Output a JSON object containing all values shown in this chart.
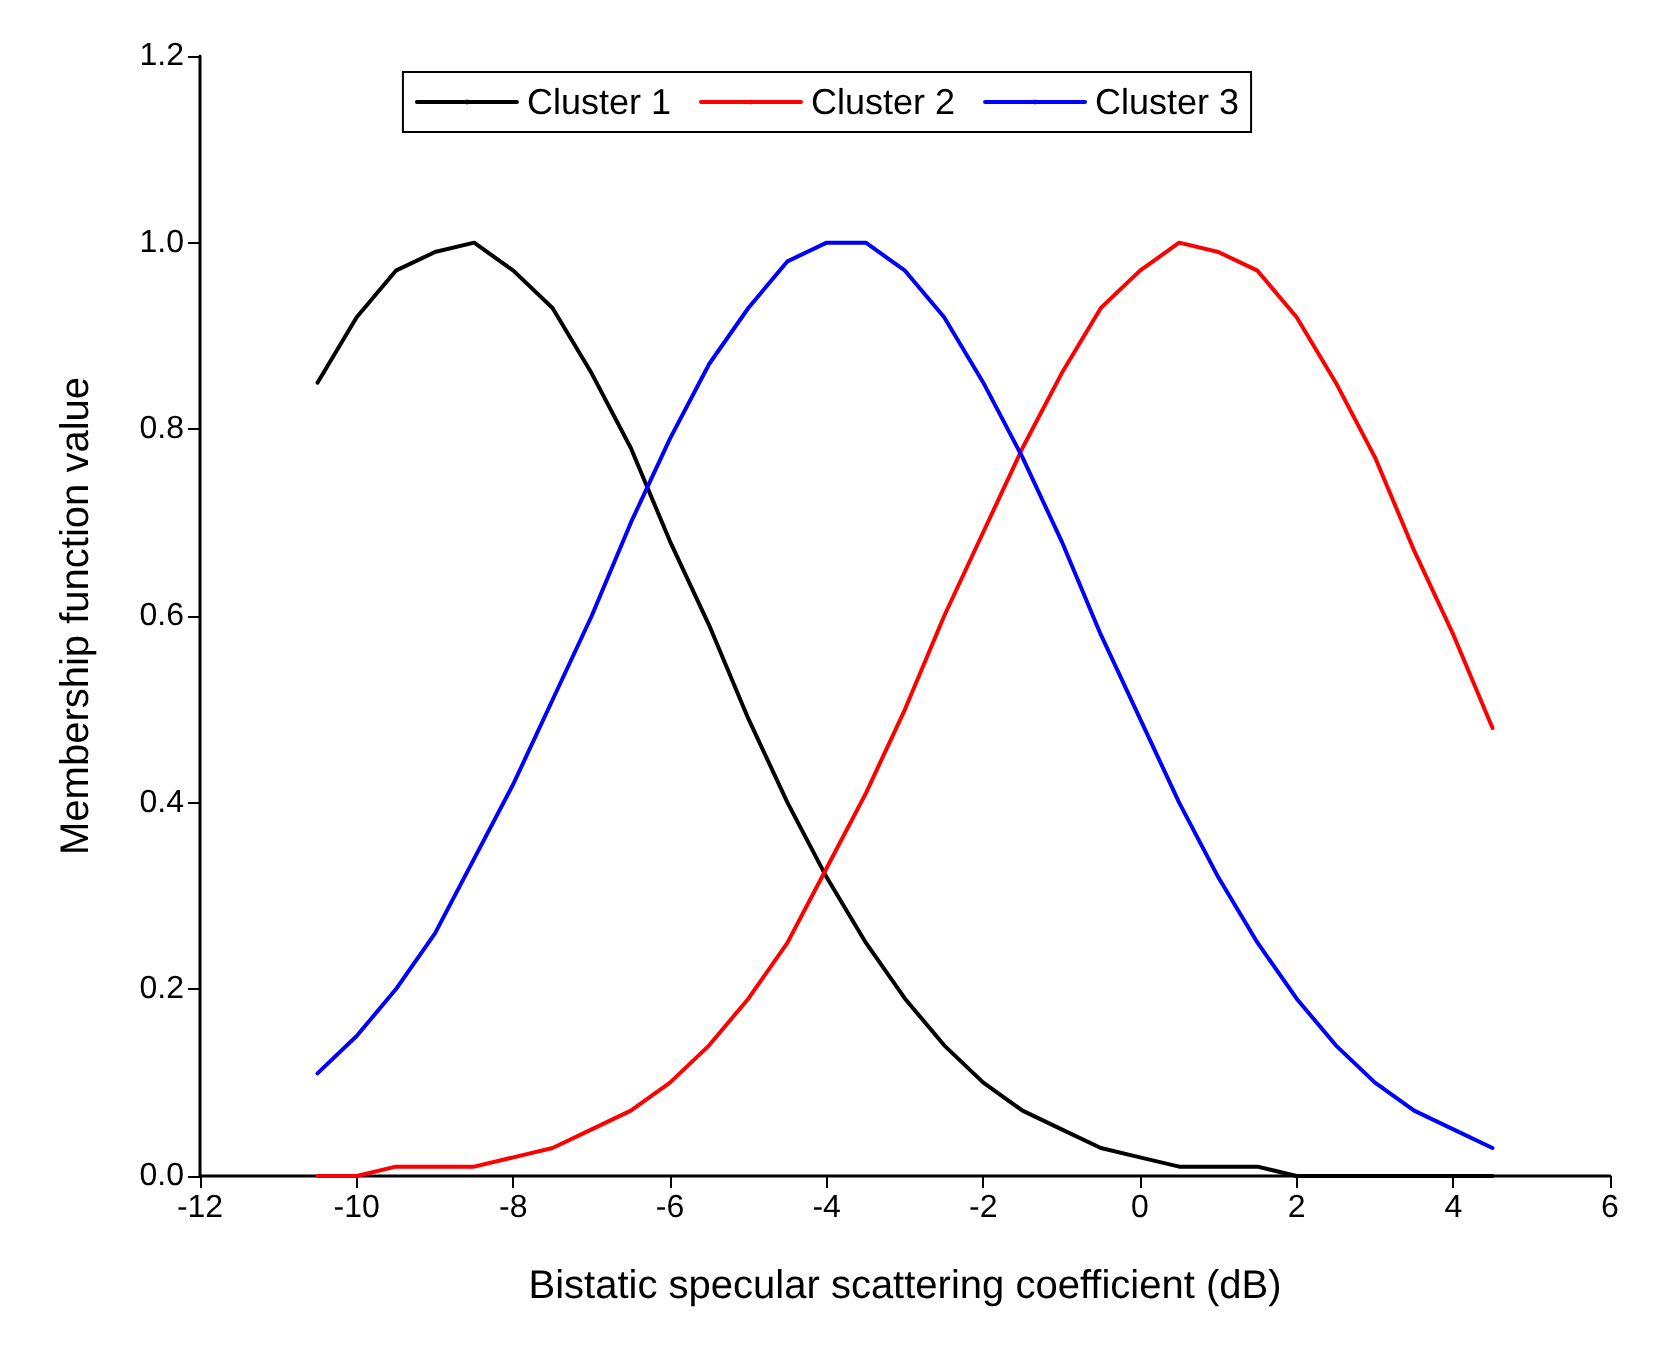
{
  "chart_data": {
    "type": "line",
    "xlabel": "Bistatic specular scattering coefficient (dB)",
    "ylabel": "Membership function value",
    "x": [
      -10.5,
      -10,
      -9.5,
      -9,
      -8.5,
      -8,
      -7.5,
      -7,
      -6.5,
      -6,
      -5.5,
      -5,
      -4.5,
      -4,
      -3.5,
      -3,
      -2.5,
      -2,
      -1.5,
      -1,
      -0.5,
      0,
      0.5,
      1,
      1.5,
      2,
      2.5,
      3,
      3.5,
      4,
      4.5
    ],
    "series": [
      {
        "name": "Cluster 1",
        "color": "#000000",
        "values": [
          0.85,
          0.92,
          0.97,
          0.99,
          1.0,
          0.97,
          0.93,
          0.86,
          0.78,
          0.68,
          0.59,
          0.49,
          0.4,
          0.32,
          0.25,
          0.19,
          0.14,
          0.1,
          0.07,
          0.05,
          0.03,
          0.02,
          0.01,
          0.01,
          0.01,
          0.0,
          0.0,
          0.0,
          0.0,
          0.0,
          0.0
        ]
      },
      {
        "name": "Cluster 2",
        "color": "#ff0000",
        "values": [
          0.0,
          0.0,
          0.01,
          0.01,
          0.01,
          0.02,
          0.03,
          0.05,
          0.07,
          0.1,
          0.14,
          0.19,
          0.25,
          0.33,
          0.41,
          0.5,
          0.6,
          0.69,
          0.78,
          0.86,
          0.93,
          0.97,
          1.0,
          0.99,
          0.97,
          0.92,
          0.85,
          0.77,
          0.67,
          0.58,
          0.48
        ]
      },
      {
        "name": "Cluster 3",
        "color": "#0000ff",
        "values": [
          0.11,
          0.15,
          0.2,
          0.26,
          0.34,
          0.42,
          0.51,
          0.6,
          0.7,
          0.79,
          0.87,
          0.93,
          0.98,
          1.0,
          1.0,
          0.97,
          0.92,
          0.85,
          0.77,
          0.68,
          0.58,
          0.49,
          0.4,
          0.32,
          0.25,
          0.19,
          0.14,
          0.1,
          0.07,
          0.05,
          0.03
        ]
      }
    ],
    "xlim": [
      -12,
      6
    ],
    "xticks": [
      -12,
      -10,
      -8,
      -6,
      -4,
      -2,
      0,
      2,
      4,
      6
    ],
    "ylim": [
      0,
      1.2
    ],
    "yticks": [
      {
        "value": 0,
        "label": "0.0"
      },
      {
        "value": 0.2,
        "label": "0.2"
      },
      {
        "value": 0.4,
        "label": "0.4"
      },
      {
        "value": 0.6,
        "label": "0.6"
      },
      {
        "value": 0.8,
        "label": "0.8"
      },
      {
        "value": 1,
        "label": "1.0"
      },
      {
        "value": 1.2,
        "label": "1.2"
      }
    ],
    "grid": false,
    "legend": "top",
    "marker": "none",
    "line_style": "solid"
  }
}
